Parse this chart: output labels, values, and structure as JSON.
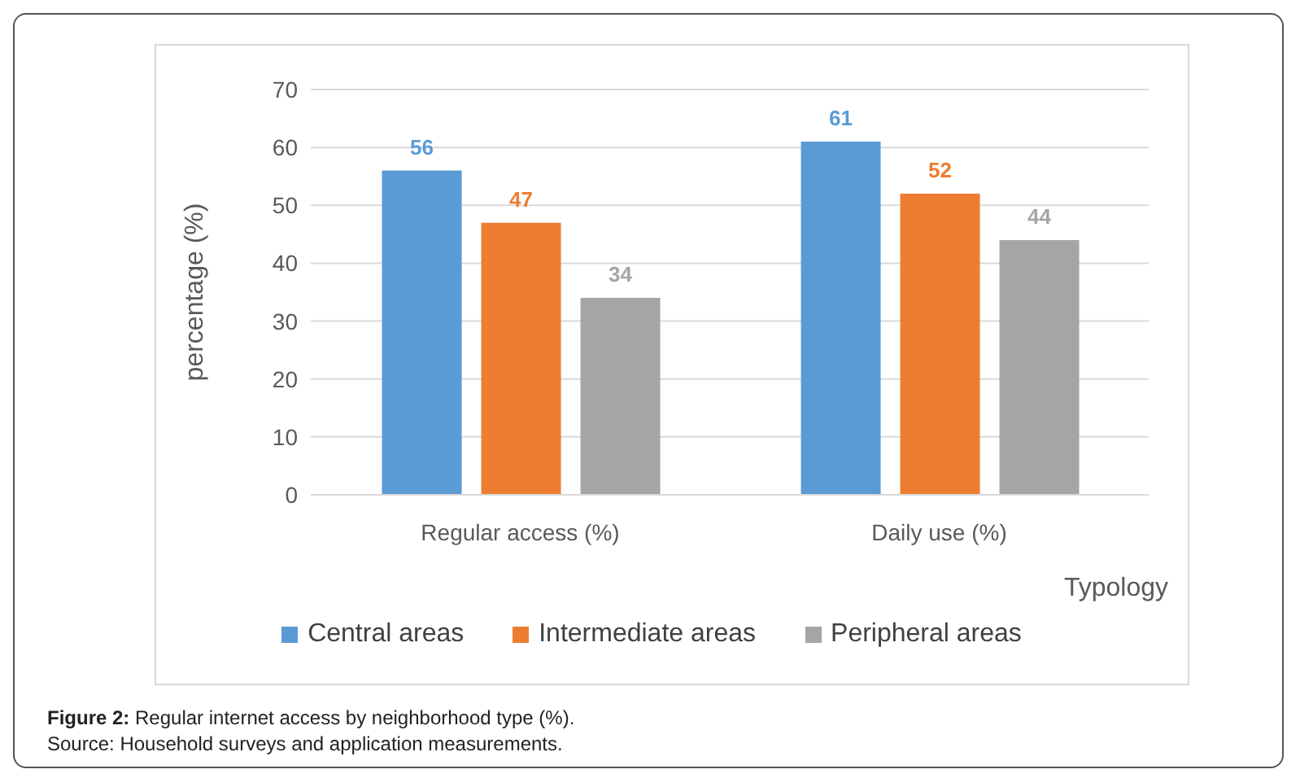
{
  "chart_data": {
    "type": "bar",
    "categories": [
      "Regular access (%)",
      "Daily use (%)"
    ],
    "series": [
      {
        "name": "Central areas",
        "color": "#5b9bd5",
        "values": [
          56,
          61
        ]
      },
      {
        "name": "Intermediate areas",
        "color": "#ed7d31",
        "values": [
          47,
          52
        ]
      },
      {
        "name": "Peripheral areas",
        "color": "#a5a5a5",
        "values": [
          34,
          44
        ]
      }
    ],
    "ylabel": "percentage (%)",
    "xlabel": "Typology",
    "ylim": [
      0,
      70
    ],
    "yticks": [
      0,
      10,
      20,
      30,
      40,
      50,
      60,
      70
    ],
    "grid": "y",
    "legend": "bottom",
    "data_labels": true,
    "annotations": [
      "Figure 2: Regular internet access by neighborhood type (%).",
      "Source: Household surveys and application measurements."
    ]
  }
}
